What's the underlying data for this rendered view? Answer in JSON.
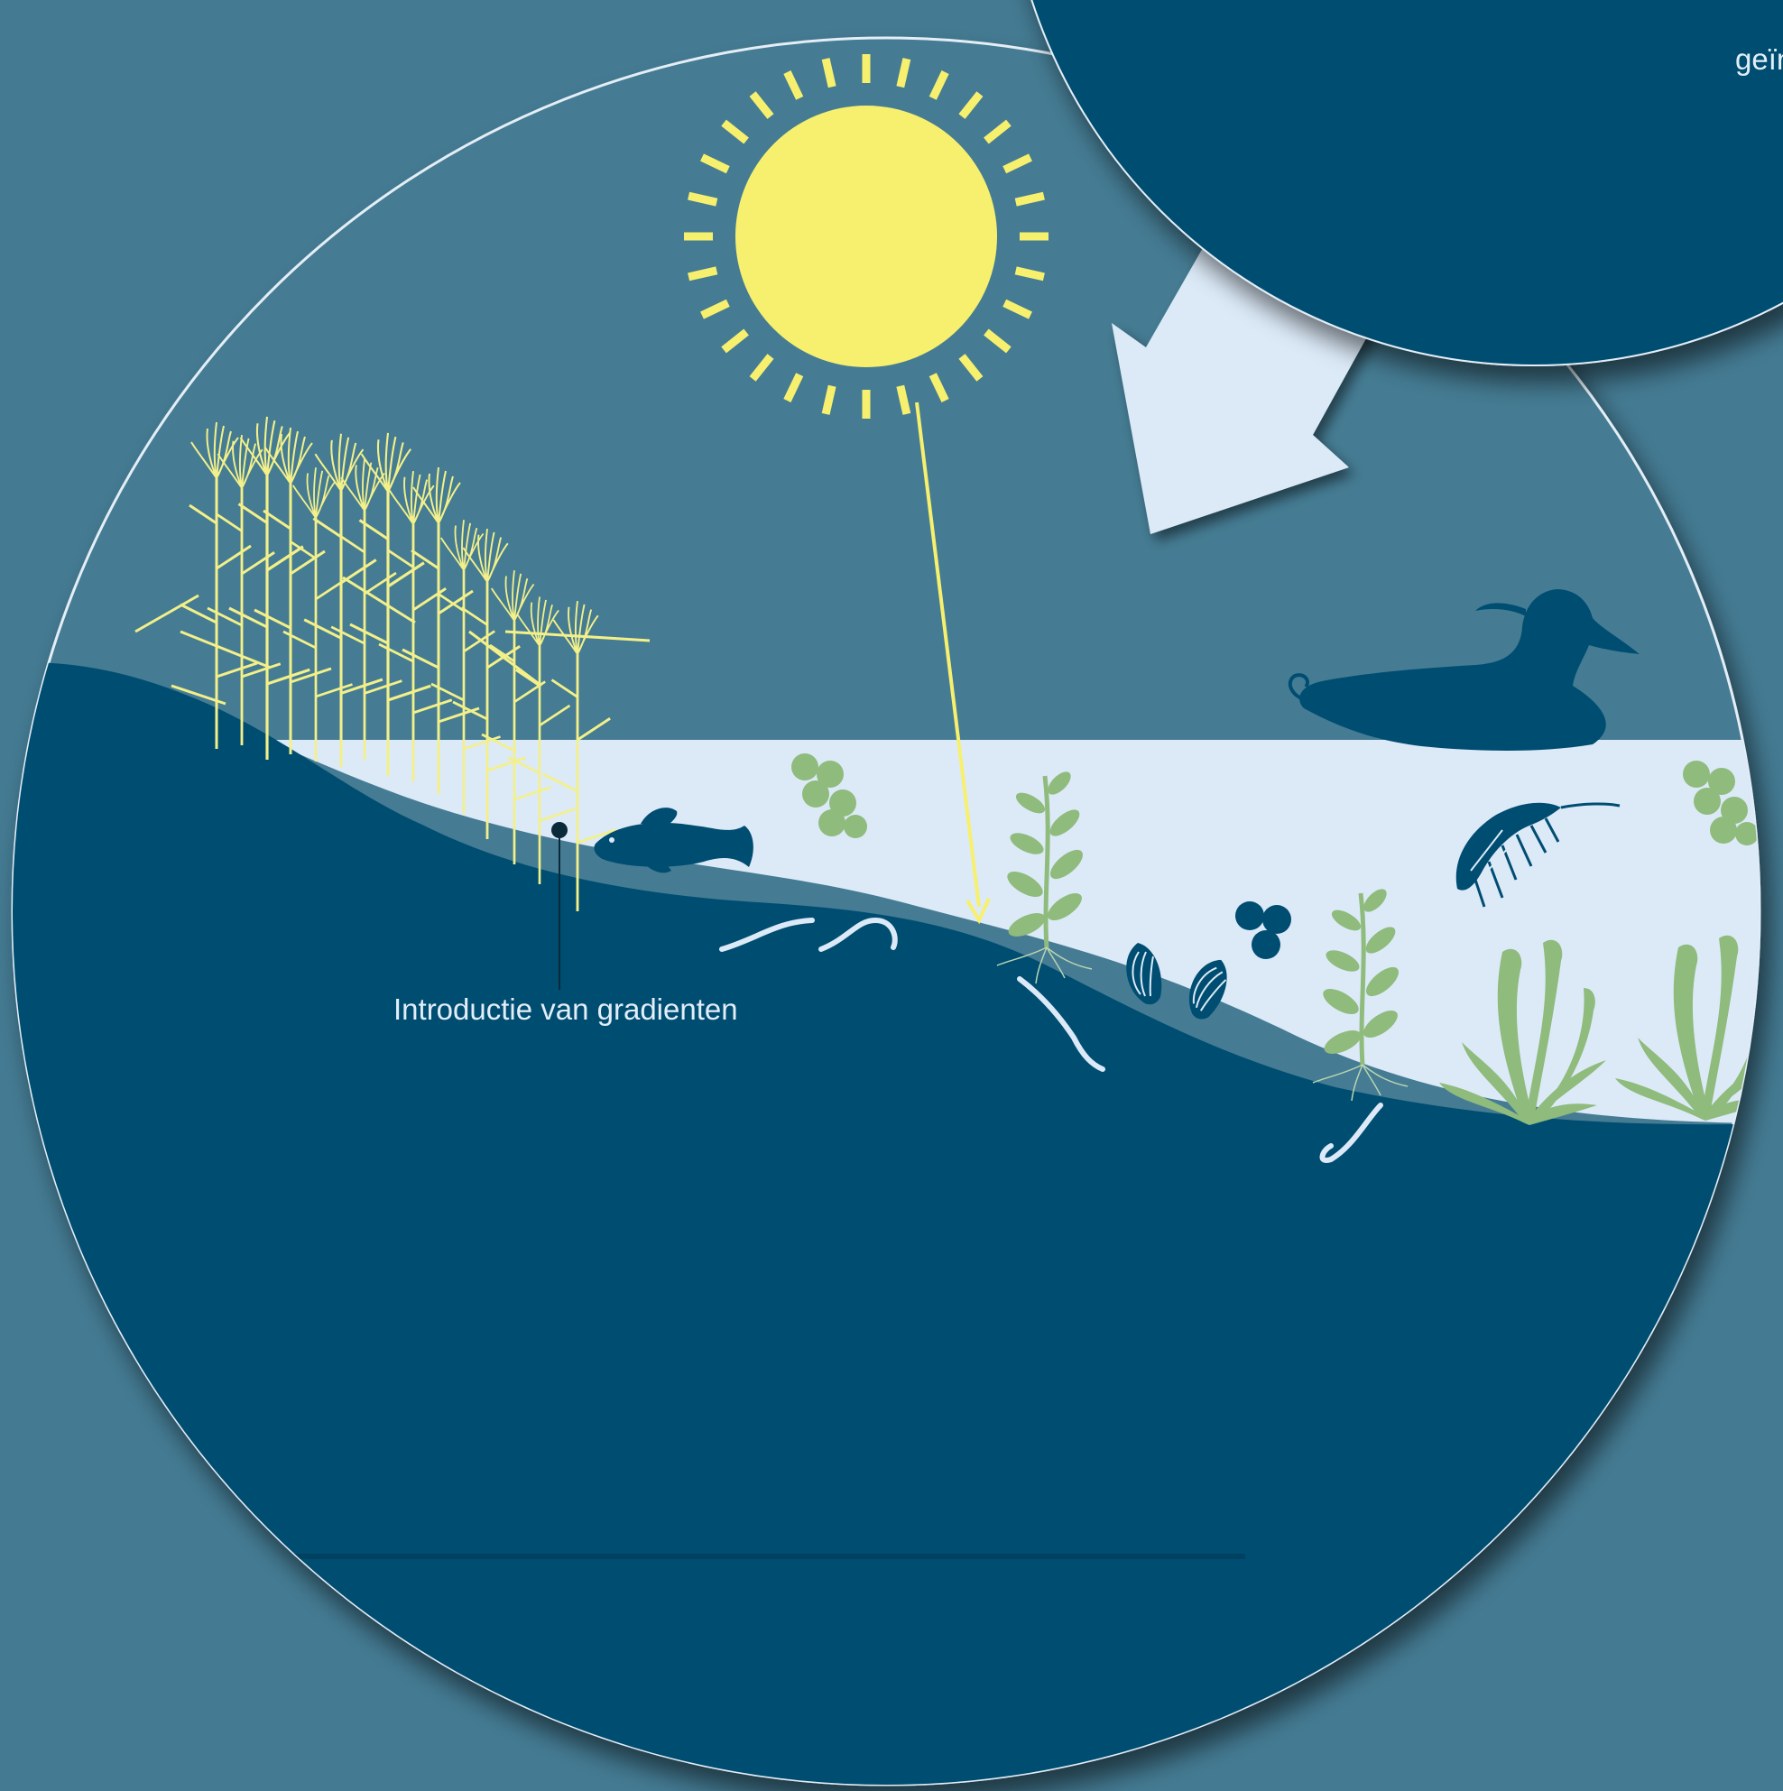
{
  "annotations": {
    "gradients": "Introductie van gradienten",
    "corner_fragment": "geïn"
  },
  "colors": {
    "background": "#447b93",
    "deep_water": "#004d72",
    "shallow_water": "#dceaf8",
    "sun": "#f7f06e",
    "vegetation": "#8fbb7d",
    "reed": "#f3f08a",
    "arrow": "#dceaf8",
    "rim": "#e4eef6"
  },
  "icons": [
    "sun-icon",
    "reed-icon",
    "duck-icon",
    "fish-icon",
    "shrimp-icon",
    "mussel-icon",
    "pondweed-icon",
    "worm-icon",
    "algae-cluster-icon",
    "arrow-icon"
  ]
}
